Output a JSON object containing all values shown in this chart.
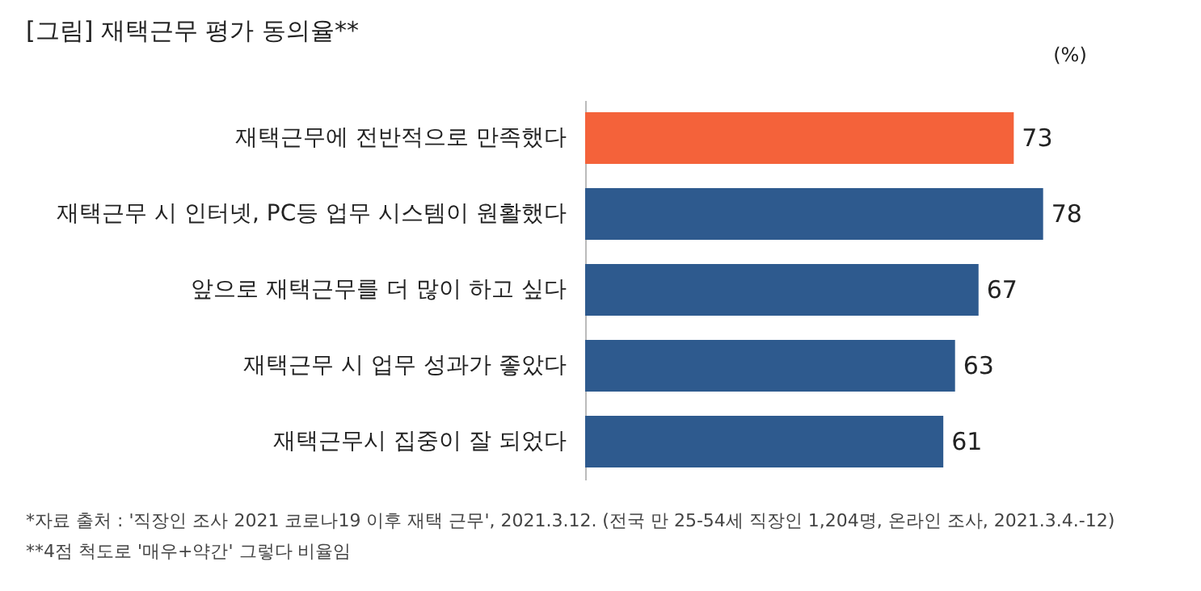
{
  "chart_data": {
    "type": "bar",
    "orientation": "horizontal",
    "title": "[그림] 재택근무 평가 동의율**",
    "xlabel": "(%)",
    "categories": [
      "재택근무에 전반적으로 만족했다",
      "재택근무 시 인터넷, PC등 업무  시스템이 원활했다",
      "앞으로 재택근무를 더 많이 하고 싶다",
      "재택근무 시 업무 성과가 좋았다",
      "재택근무시 집중이 잘 되었다"
    ],
    "values": [
      73,
      78,
      67,
      63,
      61
    ],
    "colors": [
      "#f4623a",
      "#2e5a8e",
      "#2e5a8e",
      "#2e5a8e",
      "#2e5a8e"
    ],
    "data_labels": true,
    "annotations": [
      "*자료 출처 : '직장인 조사 2021 코로나19 이후 재택 근무', 2021.3.12. (전국 만 25-54세 직장인 1,204명, 온라인 조사, 2021.3.4.-12)",
      "**4점 척도로 '매우+약간' 그렇다 비율임"
    ]
  }
}
